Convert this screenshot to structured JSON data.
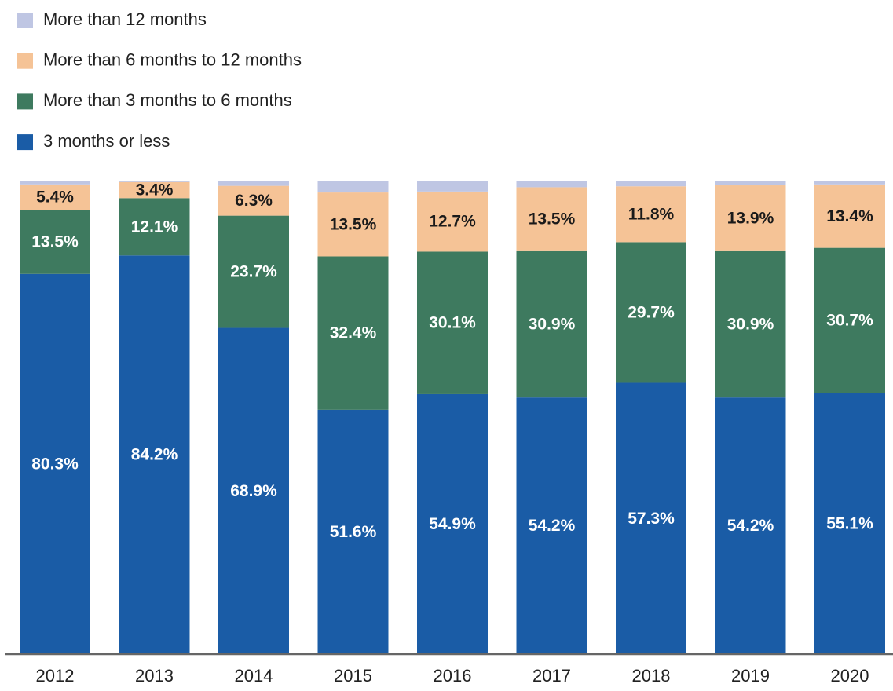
{
  "chart_data": {
    "type": "stacked_bar",
    "categories": [
      "2012",
      "2013",
      "2014",
      "2015",
      "2016",
      "2017",
      "2018",
      "2019",
      "2020"
    ],
    "ylim": [
      0,
      100
    ],
    "series": [
      {
        "name": "3 months or less",
        "color": "#1a5ca6",
        "label_color": "#ffffff",
        "values": [
          80.3,
          84.2,
          68.9,
          51.6,
          54.9,
          54.2,
          57.3,
          54.2,
          55.1
        ],
        "value_labels": [
          "80.3%",
          "84.2%",
          "68.9%",
          "51.6%",
          "54.9%",
          "54.2%",
          "57.3%",
          "54.2%",
          "55.1%"
        ]
      },
      {
        "name": "More than 3 months to 6 months",
        "color": "#3e7a5f",
        "label_color": "#ffffff",
        "values": [
          13.5,
          12.1,
          23.7,
          32.4,
          30.1,
          30.9,
          29.7,
          30.9,
          30.7
        ],
        "value_labels": [
          "13.5%",
          "12.1%",
          "23.7%",
          "32.4%",
          "30.1%",
          "30.9%",
          "29.7%",
          "30.9%",
          "30.7%"
        ]
      },
      {
        "name": "More than 6 months to 12 months",
        "color": "#f5c396",
        "label_color": "#1a1a1a",
        "values": [
          5.4,
          3.4,
          6.3,
          13.5,
          12.7,
          13.5,
          11.8,
          13.9,
          13.4
        ],
        "value_labels": [
          "5.4%",
          "3.4%",
          "6.3%",
          "13.5%",
          "12.7%",
          "13.5%",
          "11.8%",
          "13.9%",
          "13.4%"
        ]
      },
      {
        "name": "More than 12 months",
        "color": "#bfc6e3",
        "values": [
          0.8,
          0.3,
          1.1,
          2.5,
          2.3,
          1.4,
          1.2,
          1.0,
          0.8
        ]
      }
    ]
  }
}
